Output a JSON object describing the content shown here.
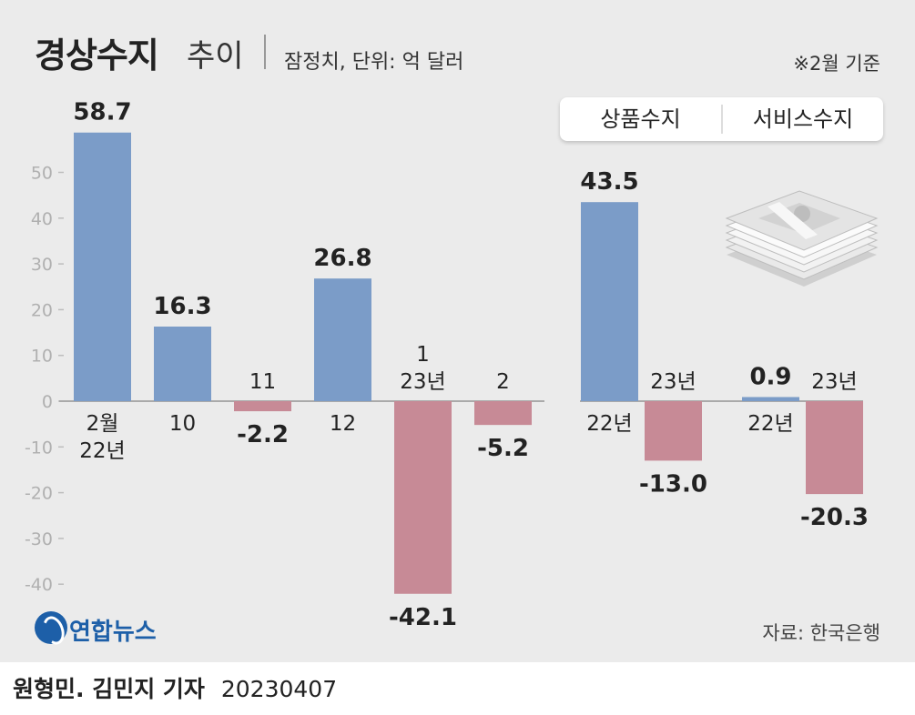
{
  "title": {
    "main": "경상수지",
    "sub": "추이",
    "units": "잠정치, 단위: 억 달러",
    "basis": "※2월 기준"
  },
  "legend": {
    "goods": "상품수지",
    "services": "서비스수지"
  },
  "source": "자료: 한국은행",
  "logo": {
    "text": "연합뉴스"
  },
  "credit": {
    "name": "원형민. 김민지 기자",
    "date": "20230407"
  },
  "colors": {
    "positive": "#7b9cc8",
    "negative": "#c78a96",
    "panel": "#ebebeb",
    "axis": "#aaaaaa"
  },
  "chart_data": [
    {
      "type": "bar",
      "title": "경상수지",
      "ylim": [
        -42.1,
        58.7
      ],
      "yticks": [
        50,
        40,
        30,
        20,
        10,
        0,
        -10,
        -20,
        -30,
        -40
      ],
      "grid": false,
      "categories": [
        "2월\n22년",
        "10",
        "11",
        "12",
        "1\n23년",
        "2"
      ],
      "values": [
        58.7,
        16.3,
        -2.2,
        26.8,
        -42.1,
        -5.2
      ],
      "value_labels": [
        "58.7",
        "16.3",
        "-2.2",
        "26.8",
        "-42.1",
        "-5.2"
      ]
    },
    {
      "type": "bar",
      "title": "상품수지",
      "categories": [
        "22년",
        "23년"
      ],
      "values": [
        43.5,
        -13.0
      ],
      "value_labels": [
        "43.5",
        "-13.0"
      ]
    },
    {
      "type": "bar",
      "title": "서비스수지",
      "categories": [
        "22년",
        "23년"
      ],
      "values": [
        0.9,
        -20.3
      ],
      "value_labels": [
        "0.9",
        "-20.3"
      ]
    }
  ]
}
